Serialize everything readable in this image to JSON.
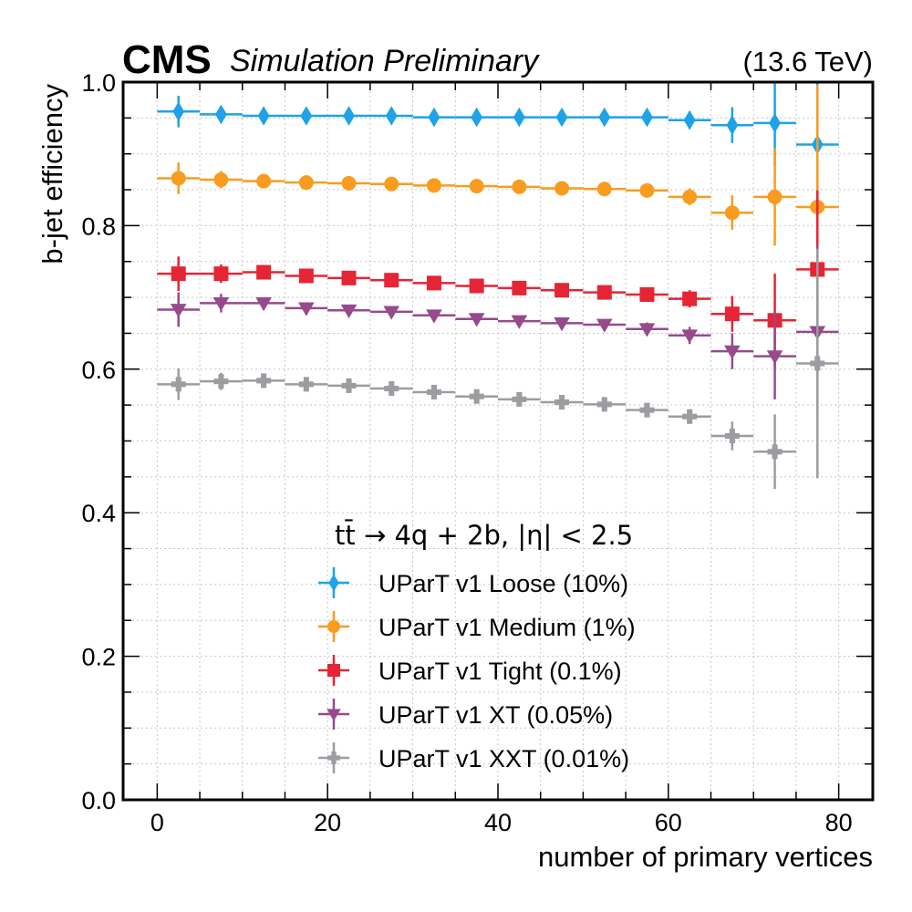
{
  "chart_data": {
    "type": "scatter",
    "title_left_bold": "CMS",
    "title_left_italic": "Simulation Preliminary",
    "title_right": "(13.6 TeV)",
    "xlabel": "number of primary vertices",
    "ylabel": "b-jet efficiency",
    "xlim": [
      -4,
      84
    ],
    "ylim": [
      0.0,
      1.0
    ],
    "xticks": [
      0,
      20,
      40,
      60,
      80
    ],
    "xtick_labels": [
      "0",
      "20",
      "40",
      "60",
      "80"
    ],
    "yticks": [
      0.0,
      0.2,
      0.4,
      0.6,
      0.8,
      1.0
    ],
    "ytick_labels": [
      "0.0",
      "0.2",
      "0.4",
      "0.6",
      "0.8",
      "1.0"
    ],
    "grid": true,
    "legend_title": "tt̄ → 4q + 2b, |η| < 2.5",
    "legend_position": "lower-center",
    "x": [
      2.5,
      7.5,
      12.5,
      17.5,
      22.5,
      27.5,
      32.5,
      37.5,
      42.5,
      47.5,
      52.5,
      57.5,
      62.5,
      67.5,
      72.5,
      77.5
    ],
    "x_bin_halfwidth": 2.5,
    "series": [
      {
        "name": "UParT v1 Loose (10%)",
        "color": "#1ea2e8",
        "marker": "diamond",
        "values": [
          0.959,
          0.955,
          0.953,
          0.953,
          0.953,
          0.953,
          0.951,
          0.951,
          0.951,
          0.951,
          0.951,
          0.951,
          0.947,
          0.94,
          0.943,
          0.913
        ],
        "yerr": [
          0.022,
          0.01,
          0.005,
          0.004,
          0.004,
          0.004,
          0.004,
          0.004,
          0.004,
          0.005,
          0.006,
          0.008,
          0.012,
          0.025,
          0.06,
          0.09
        ]
      },
      {
        "name": "UParT v1 Medium (1%)",
        "color": "#f89c20",
        "marker": "circle",
        "values": [
          0.866,
          0.864,
          0.862,
          0.86,
          0.859,
          0.858,
          0.856,
          0.855,
          0.854,
          0.852,
          0.851,
          0.849,
          0.84,
          0.818,
          0.84,
          0.826
        ],
        "yerr": [
          0.022,
          0.012,
          0.006,
          0.005,
          0.005,
          0.005,
          0.005,
          0.005,
          0.005,
          0.005,
          0.006,
          0.008,
          0.012,
          0.024,
          0.068,
          0.17
        ]
      },
      {
        "name": "UParT v1 Tight (0.1%)",
        "color": "#e42536",
        "marker": "square",
        "values": [
          0.733,
          0.733,
          0.735,
          0.73,
          0.727,
          0.724,
          0.72,
          0.716,
          0.713,
          0.71,
          0.707,
          0.704,
          0.698,
          0.677,
          0.668,
          0.739
        ],
        "yerr": [
          0.024,
          0.013,
          0.007,
          0.006,
          0.006,
          0.006,
          0.006,
          0.006,
          0.006,
          0.006,
          0.007,
          0.009,
          0.012,
          0.025,
          0.065,
          0.11
        ]
      },
      {
        "name": "UParT v1 XT (0.05%)",
        "color": "#964a8b",
        "marker": "triangle-down",
        "values": [
          0.683,
          0.692,
          0.692,
          0.685,
          0.682,
          0.68,
          0.675,
          0.67,
          0.667,
          0.664,
          0.662,
          0.656,
          0.647,
          0.625,
          0.618,
          0.652
        ],
        "yerr": [
          0.024,
          0.013,
          0.007,
          0.006,
          0.006,
          0.006,
          0.006,
          0.006,
          0.006,
          0.006,
          0.007,
          0.009,
          0.012,
          0.025,
          0.06,
          0.12
        ]
      },
      {
        "name": "UParT v1 XXT (0.01%)",
        "color": "#9c9ca1",
        "marker": "plus",
        "values": [
          0.579,
          0.583,
          0.584,
          0.579,
          0.577,
          0.573,
          0.568,
          0.562,
          0.558,
          0.554,
          0.551,
          0.543,
          0.534,
          0.507,
          0.485,
          0.608
        ],
        "yerr": [
          0.022,
          0.012,
          0.006,
          0.005,
          0.005,
          0.005,
          0.005,
          0.005,
          0.005,
          0.005,
          0.006,
          0.008,
          0.01,
          0.02,
          0.052,
          0.16
        ]
      }
    ]
  }
}
